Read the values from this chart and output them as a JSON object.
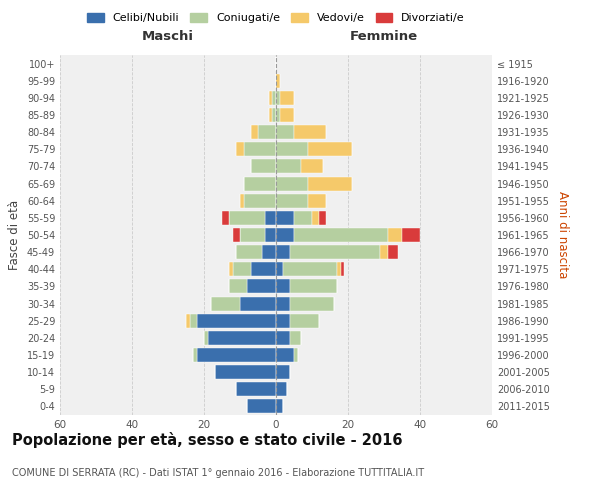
{
  "age_groups": [
    "0-4",
    "5-9",
    "10-14",
    "15-19",
    "20-24",
    "25-29",
    "30-34",
    "35-39",
    "40-44",
    "45-49",
    "50-54",
    "55-59",
    "60-64",
    "65-69",
    "70-74",
    "75-79",
    "80-84",
    "85-89",
    "90-94",
    "95-99",
    "100+"
  ],
  "birth_years": [
    "2011-2015",
    "2006-2010",
    "2001-2005",
    "1996-2000",
    "1991-1995",
    "1986-1990",
    "1981-1985",
    "1976-1980",
    "1971-1975",
    "1966-1970",
    "1961-1965",
    "1956-1960",
    "1951-1955",
    "1946-1950",
    "1941-1945",
    "1936-1940",
    "1931-1935",
    "1926-1930",
    "1921-1925",
    "1916-1920",
    "≤ 1915"
  ],
  "maschi": {
    "celibi": [
      8,
      11,
      17,
      22,
      19,
      22,
      10,
      8,
      7,
      4,
      3,
      3,
      0,
      0,
      0,
      0,
      0,
      0,
      0,
      0,
      0
    ],
    "coniugati": [
      0,
      0,
      0,
      1,
      1,
      2,
      8,
      5,
      5,
      7,
      7,
      10,
      9,
      9,
      7,
      9,
      5,
      1,
      1,
      0,
      0
    ],
    "vedovi": [
      0,
      0,
      0,
      0,
      0,
      1,
      0,
      0,
      1,
      0,
      0,
      0,
      1,
      0,
      0,
      2,
      2,
      1,
      1,
      0,
      0
    ],
    "divorziati": [
      0,
      0,
      0,
      0,
      0,
      0,
      0,
      0,
      0,
      0,
      2,
      2,
      0,
      0,
      0,
      0,
      0,
      0,
      0,
      0,
      0
    ]
  },
  "femmine": {
    "nubili": [
      2,
      3,
      4,
      5,
      4,
      4,
      4,
      4,
      2,
      4,
      5,
      5,
      0,
      0,
      0,
      0,
      0,
      0,
      0,
      0,
      0
    ],
    "coniugate": [
      0,
      0,
      0,
      1,
      3,
      8,
      12,
      13,
      15,
      25,
      26,
      5,
      9,
      9,
      7,
      9,
      5,
      1,
      1,
      0,
      0
    ],
    "vedove": [
      0,
      0,
      0,
      0,
      0,
      0,
      0,
      0,
      1,
      2,
      4,
      2,
      5,
      12,
      6,
      12,
      9,
      4,
      4,
      1,
      0
    ],
    "divorziate": [
      0,
      0,
      0,
      0,
      0,
      0,
      0,
      0,
      1,
      3,
      5,
      2,
      0,
      0,
      0,
      0,
      0,
      0,
      0,
      0,
      0
    ]
  },
  "colors": {
    "celibi": "#3a6fad",
    "coniugati": "#b5cfa0",
    "vedovi": "#f5c96a",
    "divorziati": "#d93b3b"
  },
  "xlim": 60,
  "title": "Popolazione per età, sesso e stato civile - 2016",
  "subtitle": "COMUNE DI SERRATA (RC) - Dati ISTAT 1° gennaio 2016 - Elaborazione TUTTITALIA.IT",
  "ylabel_left": "Fasce di età",
  "ylabel_right": "Anni di nascita",
  "xlabel_maschi": "Maschi",
  "xlabel_femmine": "Femmine",
  "legend_labels": [
    "Celibi/Nubili",
    "Coniugati/e",
    "Vedovi/e",
    "Divorziati/e"
  ],
  "bg_color": "#ffffff",
  "grid_color": "#cccccc",
  "bar_edge_color": "#ffffff",
  "figsize": [
    6.0,
    5.0
  ],
  "dpi": 100
}
